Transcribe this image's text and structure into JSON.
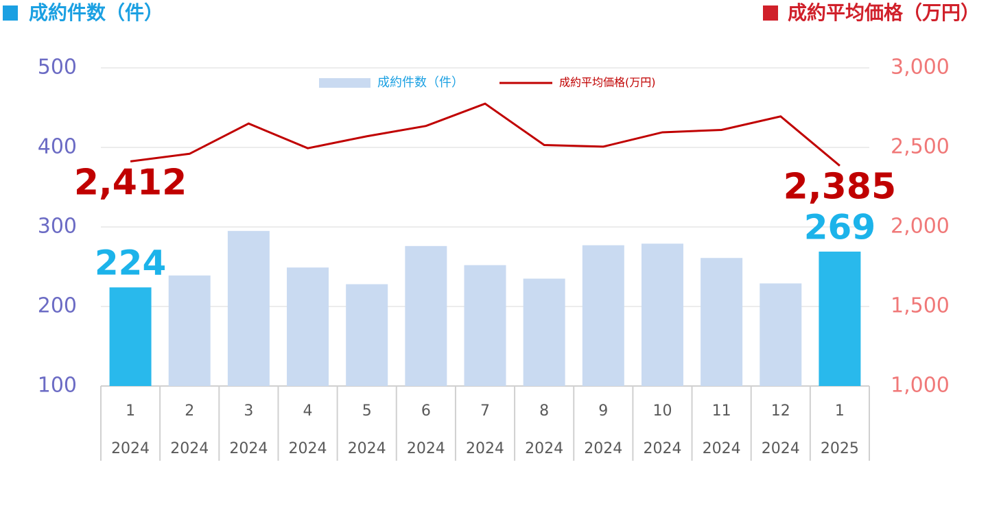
{
  "chart_data": {
    "type": "bar_line",
    "y_label": "成約件数（件）",
    "y2_label": "成約平均価格（万円）",
    "categories": [
      "1",
      "2",
      "3",
      "4",
      "5",
      "6",
      "7",
      "8",
      "9",
      "10",
      "11",
      "12",
      "1"
    ],
    "years": [
      "2024",
      "2024",
      "2024",
      "2024",
      "2024",
      "2024",
      "2024",
      "2024",
      "2024",
      "2024",
      "2024",
      "2024",
      "2025"
    ],
    "series": [
      {
        "name": "成約件数（件）",
        "type": "bar",
        "color": "#c9daf1",
        "colors": [
          "#29b9ec",
          "#c9daf1",
          "#c9daf1",
          "#c9daf1",
          "#c9daf1",
          "#c9daf1",
          "#c9daf1",
          "#c9daf1",
          "#c9daf1",
          "#c9daf1",
          "#c9daf1",
          "#c9daf1",
          "#29b9ec"
        ],
        "values": [
          224,
          239,
          295,
          249,
          228,
          276,
          252,
          235,
          277,
          279,
          261,
          229,
          269
        ],
        "value_labels": [
          "224",
          null,
          null,
          null,
          null,
          null,
          null,
          null,
          null,
          null,
          null,
          null,
          "269"
        ]
      },
      {
        "name": "成約平均価格(万円)",
        "type": "line",
        "axis": "y2",
        "color": "#c00000",
        "values": [
          2412,
          2460,
          2650,
          2495,
          2570,
          2635,
          2775,
          2515,
          2505,
          2595,
          2610,
          2695,
          2385
        ],
        "value_labels": [
          "2,412",
          null,
          null,
          null,
          null,
          null,
          null,
          null,
          null,
          null,
          null,
          null,
          "2,385"
        ]
      }
    ],
    "ylim": [
      100,
      500
    ],
    "yticks": [
      100,
      200,
      300,
      400,
      500
    ],
    "y2lim": [
      1000,
      3000
    ],
    "y2ticks": [
      {
        "value": 1000,
        "label": "1,000"
      },
      {
        "value": 1500,
        "label": "1,500"
      },
      {
        "value": 2000,
        "label": "2,000"
      },
      {
        "value": 2500,
        "label": "2,500"
      },
      {
        "value": 3000,
        "label": "3,000"
      }
    ],
    "grid": true
  }
}
